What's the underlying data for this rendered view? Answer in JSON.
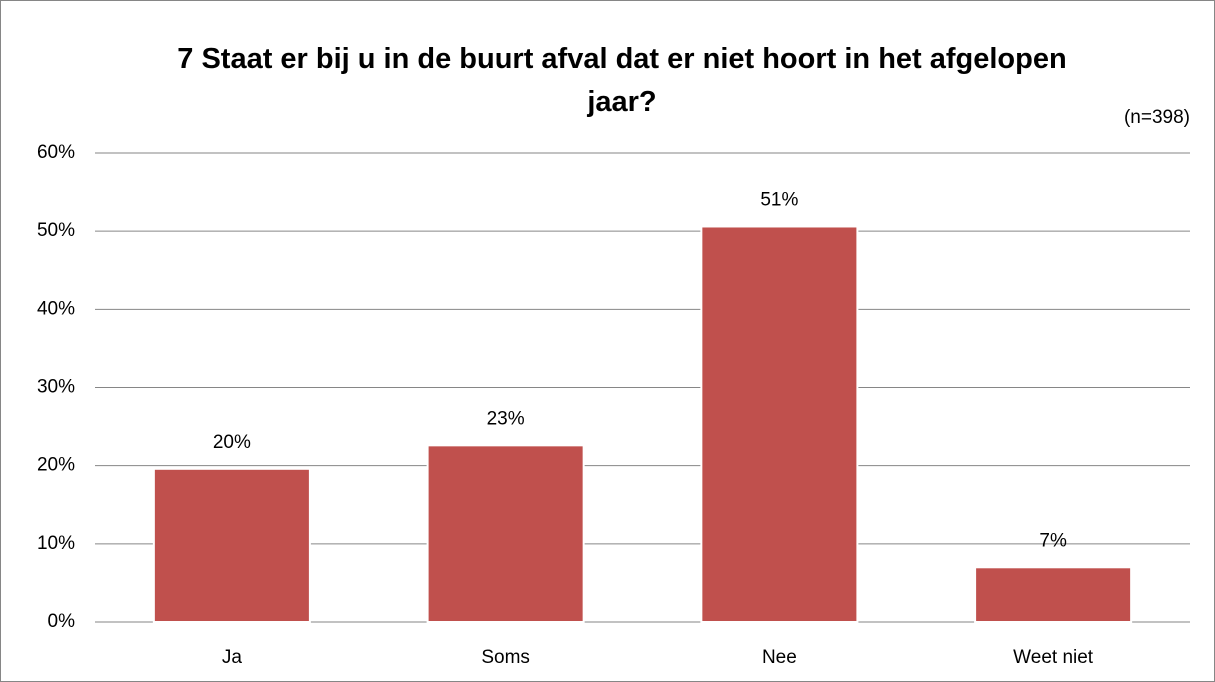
{
  "chart_data": {
    "type": "bar",
    "title": "7 Staat er bij u in de buurt afval dat er niet hoort in het afgelopen jaar?",
    "subtitle": "(n=398)",
    "categories": [
      "Ja",
      "Soms",
      "Nee",
      "Weet niet"
    ],
    "values": [
      19.6,
      22.6,
      50.6,
      7.0
    ],
    "value_labels": [
      "20%",
      "23%",
      "51%",
      "7%"
    ],
    "color": "#c0504d",
    "ylim": [
      0,
      60
    ],
    "yticks": [
      {
        "value": 0,
        "label": "0%"
      },
      {
        "value": 10,
        "label": "10%"
      },
      {
        "value": 20,
        "label": "20%"
      },
      {
        "value": 30,
        "label": "30%"
      },
      {
        "value": 40,
        "label": "40%"
      },
      {
        "value": 50,
        "label": "50%"
      },
      {
        "value": 60,
        "label": "60%"
      }
    ],
    "grid": true
  }
}
